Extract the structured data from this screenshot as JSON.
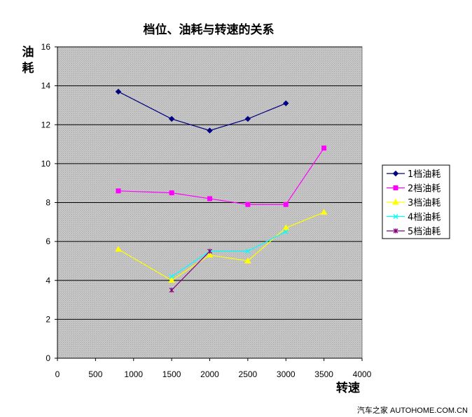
{
  "chart_data": {
    "type": "line",
    "title": "档位、油耗与转速的关系",
    "xlabel": "转速",
    "ylabel": "油耗",
    "xlim": [
      0,
      4000
    ],
    "ylim": [
      0,
      16
    ],
    "xticks": [
      "0",
      "500",
      "1000",
      "1500",
      "2000",
      "2500",
      "3000",
      "3500",
      "4000"
    ],
    "yticks": [
      "0",
      "2",
      "4",
      "6",
      "8",
      "10",
      "12",
      "14",
      "16"
    ],
    "grid": "horizontal",
    "plot_background": "#c0c0c0",
    "legend_position": "right",
    "series": [
      {
        "name": "1档油耗",
        "color": "#000080",
        "marker": "diamond",
        "x": [
          800,
          1500,
          2000,
          2500,
          3000
        ],
        "y": [
          13.7,
          12.3,
          11.7,
          12.3,
          13.1
        ]
      },
      {
        "name": "2档油耗",
        "color": "#ff00ff",
        "marker": "square",
        "x": [
          800,
          1500,
          2000,
          2500,
          3000,
          3500
        ],
        "y": [
          8.6,
          8.5,
          8.2,
          7.9,
          7.9,
          10.8
        ]
      },
      {
        "name": "3档油耗",
        "color": "#ffff00",
        "marker": "triangle",
        "x": [
          800,
          1500,
          2000,
          2500,
          3000,
          3500
        ],
        "y": [
          5.6,
          4.0,
          5.3,
          5.0,
          6.7,
          7.5
        ]
      },
      {
        "name": "4档油耗",
        "color": "#00ffff",
        "marker": "x",
        "x": [
          1500,
          2000,
          2500,
          3000
        ],
        "y": [
          4.2,
          5.5,
          5.5,
          6.5
        ]
      },
      {
        "name": "5档油耗",
        "color": "#800080",
        "marker": "star",
        "x": [
          1500,
          2000
        ],
        "y": [
          3.5,
          5.5
        ]
      }
    ]
  },
  "watermark": "汽车之家 AUTOHOME.COM.CN"
}
